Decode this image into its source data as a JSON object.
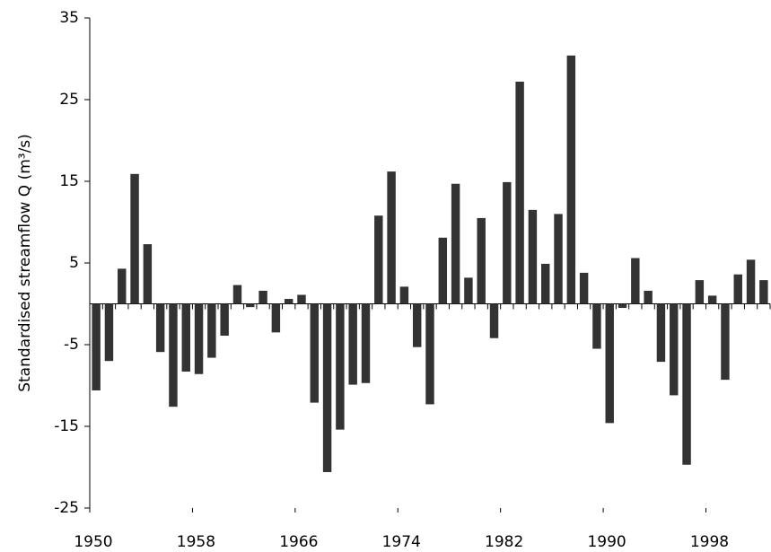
{
  "chart_data": {
    "type": "bar",
    "y_label": "Standardised streamflow Q (m³/s)",
    "categories": [
      "1950",
      null,
      null,
      null,
      null,
      null,
      null,
      null,
      "1958",
      null,
      null,
      null,
      null,
      null,
      null,
      null,
      "1966",
      null,
      null,
      null,
      null,
      null,
      null,
      null,
      "1974",
      null,
      null,
      null,
      null,
      null,
      null,
      null,
      "1982",
      null,
      null,
      null,
      null,
      null,
      null,
      null,
      "1990",
      null,
      null,
      null,
      null,
      null,
      null,
      null,
      "1998",
      null,
      null,
      null,
      null
    ],
    "values": [
      -10.6,
      -7.0,
      4.3,
      15.9,
      7.3,
      -5.9,
      -12.6,
      -8.3,
      -8.6,
      -6.6,
      -3.9,
      2.3,
      -0.4,
      1.6,
      -3.5,
      0.6,
      1.1,
      -12.1,
      -20.6,
      -15.4,
      -9.9,
      -9.7,
      10.8,
      16.2,
      2.1,
      -5.3,
      -12.3,
      8.1,
      14.7,
      3.2,
      10.5,
      -4.2,
      14.9,
      27.2,
      11.5,
      4.9,
      11.0,
      30.4,
      3.8,
      -5.5,
      -14.6,
      -0.5,
      5.6,
      1.6,
      -7.1,
      -11.2,
      -19.7,
      2.9,
      1.0,
      -9.3,
      3.6,
      5.4,
      2.9
    ],
    "color": "#333333",
    "ylim": [
      -25,
      35
    ],
    "yticks": [
      -25,
      -15,
      -5,
      5,
      15,
      25,
      35
    ],
    "grid": false
  }
}
